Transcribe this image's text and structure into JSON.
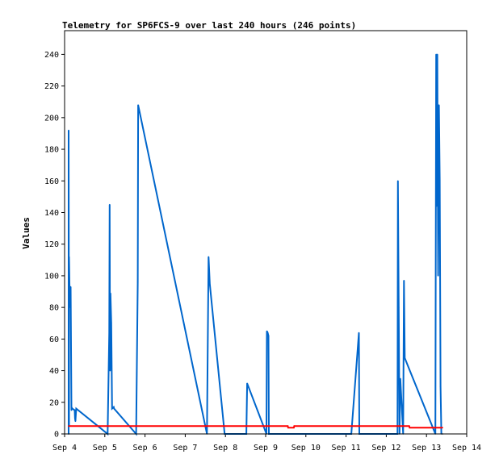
{
  "chart_data": {
    "type": "line",
    "title": "Telemetry for SP6FCS-9 over last 240 hours (246 points)",
    "xlabel": "",
    "ylabel": "Values",
    "x_ticks": [
      "Sep 4",
      "Sep 5",
      "Sep 6",
      "Sep 7",
      "Sep 8",
      "Sep 9",
      "Sep 10",
      "Sep 11",
      "Sep 12",
      "Sep 13",
      "Sep 14"
    ],
    "xlim": [
      4.0,
      14.0
    ],
    "ylim": [
      0,
      255
    ],
    "y_ticks": [
      0,
      20,
      40,
      60,
      80,
      100,
      120,
      140,
      160,
      180,
      200,
      220,
      240
    ],
    "grid": false,
    "legend": "none",
    "colors": {
      "series_0": "#0066cc",
      "series_1": "#ff0000",
      "series_2": "#000000"
    },
    "series": [
      {
        "x": [
          4.1,
          4.1,
          4.11,
          4.11,
          4.13,
          4.15,
          4.17,
          4.17,
          4.19,
          4.25,
          4.26,
          4.27,
          4.29,
          5.07,
          5.11,
          5.12,
          5.13,
          5.14,
          5.16,
          5.18,
          5.22,
          5.23,
          5.78,
          5.82,
          5.83,
          7.54,
          7.58,
          7.61,
          7.98,
          8.52,
          8.54,
          9.02,
          9.03,
          9.05,
          9.07,
          9.08,
          11.13,
          11.32,
          11.33,
          12.28,
          12.29,
          12.31,
          12.33,
          12.35,
          12.42,
          12.44,
          12.46,
          13.22,
          13.24,
          13.25,
          13.27,
          13.29,
          13.31,
          13.33,
          13.35,
          13.37
        ],
        "values": [
          0,
          192,
          5,
          112,
          80,
          93,
          15,
          17,
          16,
          15,
          10,
          8,
          16,
          0,
          64,
          145,
          40,
          89,
          70,
          16,
          17,
          16,
          0,
          96,
          208,
          0,
          112,
          95,
          0,
          0,
          32,
          0,
          65,
          64,
          62,
          0,
          0,
          64,
          0,
          0,
          160,
          80,
          0,
          35,
          0,
          97,
          48,
          0,
          240,
          144,
          240,
          100,
          208,
          160,
          30,
          0
        ]
      },
      {
        "x": [
          4.1,
          9.55,
          9.56,
          9.7,
          9.71,
          12.57,
          12.58,
          13.4
        ],
        "values": [
          5,
          5,
          4,
          4,
          5,
          5,
          4,
          4
        ]
      },
      {
        "x": [
          4.1,
          13.4
        ],
        "values": [
          0,
          0
        ]
      }
    ]
  }
}
